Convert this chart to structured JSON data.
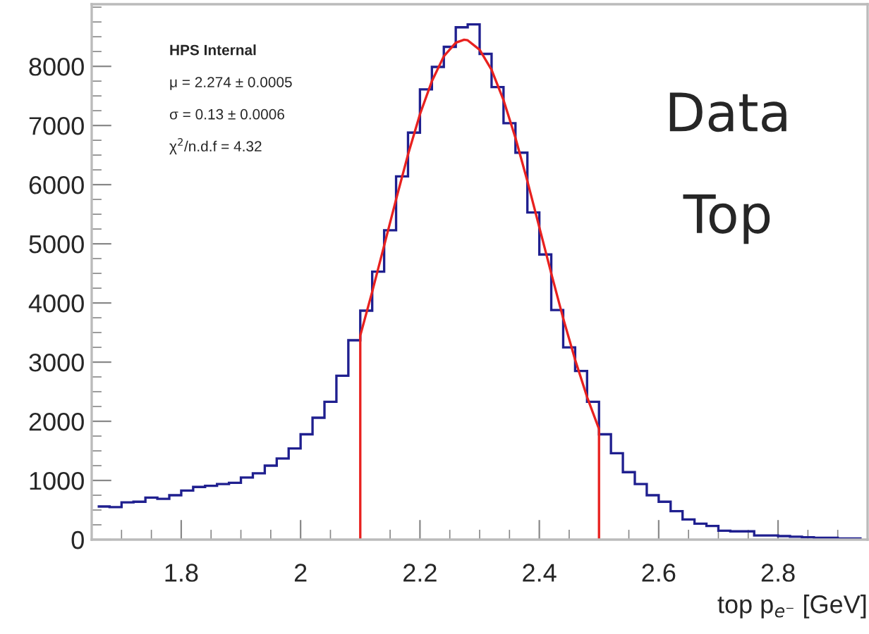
{
  "chart_data": {
    "type": "histogram",
    "xlabel": "top p$_{e⁻}$ [GeV]",
    "bins": [
      1.66,
      1.68,
      1.7,
      1.72,
      1.74,
      1.76,
      1.78,
      1.8,
      1.82,
      1.84,
      1.86,
      1.88,
      1.9,
      1.92,
      1.94,
      1.96,
      1.98,
      2.0,
      2.02,
      2.04,
      2.06,
      2.08,
      2.1,
      2.12,
      2.14,
      2.16,
      2.18,
      2.2,
      2.22,
      2.24,
      2.26,
      2.28,
      2.3,
      2.32,
      2.34,
      2.36,
      2.38,
      2.4,
      2.42,
      2.44,
      2.46,
      2.48,
      2.5,
      2.52,
      2.54,
      2.56,
      2.58,
      2.6,
      2.62,
      2.64,
      2.66,
      2.68,
      2.7,
      2.72,
      2.74,
      2.76,
      2.78,
      2.8,
      2.82,
      2.84,
      2.86,
      2.88,
      2.9,
      2.92,
      2.94
    ],
    "values": [
      560,
      550,
      630,
      640,
      710,
      690,
      750,
      830,
      890,
      910,
      940,
      960,
      1050,
      1120,
      1250,
      1370,
      1540,
      1780,
      2060,
      2330,
      2770,
      3370,
      3870,
      4530,
      5230,
      6140,
      6880,
      7610,
      7990,
      8330,
      8660,
      8710,
      8210,
      7650,
      7040,
      6540,
      5530,
      4820,
      3880,
      3250,
      2850,
      2330,
      1780,
      1460,
      1140,
      940,
      750,
      640,
      480,
      340,
      270,
      230,
      150,
      140,
      140,
      70,
      70,
      60,
      50,
      40,
      30,
      30,
      20,
      20
    ],
    "color": "#1f1f8f",
    "series": [
      {
        "type": "line",
        "color": "#e8211f",
        "x": [
          2.1,
          2.1,
          2.12,
          2.14,
          2.16,
          2.18,
          2.2,
          2.22,
          2.24,
          2.26,
          2.274,
          2.28,
          2.3,
          2.32,
          2.34,
          2.36,
          2.38,
          2.4,
          2.42,
          2.44,
          2.46,
          2.48,
          2.5,
          2.5
        ],
        "values": [
          0,
          3450,
          4190,
          4970,
          5750,
          6510,
          7190,
          7750,
          8170,
          8400,
          8450,
          8440,
          8280,
          7940,
          7430,
          6790,
          6060,
          5280,
          4500,
          3740,
          3040,
          2410,
          1870,
          0
        ]
      }
    ],
    "xlim": [
      1.65,
      2.95
    ],
    "ylim": [
      0,
      9050
    ],
    "xticks": [
      1.8,
      2,
      2.2,
      2.4,
      2.6,
      2.8
    ],
    "yticks": [
      0,
      1000,
      2000,
      3000,
      4000,
      5000,
      6000,
      7000,
      8000
    ],
    "grid": false,
    "legend": false,
    "annotations": [
      "HPS Internal",
      "μ = 2.274 ± 0.0005",
      "σ = 0.13 ± 0.0006",
      "χ$^{2}$/n.d.f = 4.32",
      "Data",
      "Top"
    ]
  }
}
